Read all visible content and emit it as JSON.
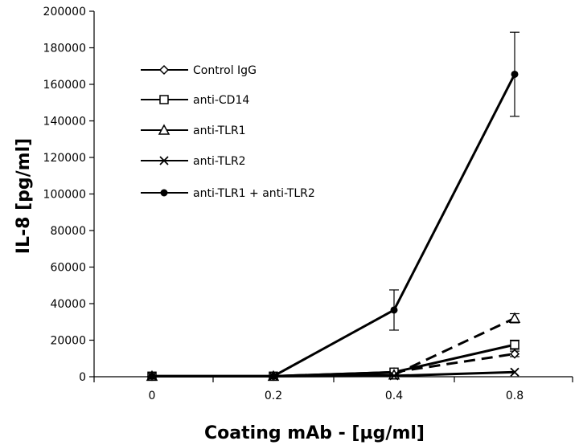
{
  "chart_data": {
    "type": "line",
    "title": "",
    "xlabel": "Coating mAb - [µg/ml]",
    "ylabel": "IL-8 [pg/ml]",
    "categories": [
      "0",
      "0.2",
      "0.4",
      "0.8"
    ],
    "ylim": [
      0,
      200000
    ],
    "yticks": [
      0,
      20000,
      40000,
      60000,
      80000,
      100000,
      120000,
      140000,
      160000,
      180000,
      200000
    ],
    "grid": false,
    "legend_position": "top-left",
    "series": [
      {
        "name": "Control IgG",
        "marker": "diamond",
        "dash": "dashed",
        "values": [
          300,
          300,
          2500,
          12500
        ],
        "errors": [
          0,
          0,
          0,
          1500
        ]
      },
      {
        "name": "anti-CD14",
        "marker": "square",
        "dash": "solid",
        "values": [
          300,
          300,
          2500,
          17500
        ],
        "errors": [
          0,
          0,
          0,
          2500
        ]
      },
      {
        "name": "anti-TLR1",
        "marker": "triangle",
        "dash": "dashed",
        "values": [
          300,
          300,
          1000,
          32000
        ],
        "errors": [
          0,
          0,
          0,
          2500
        ]
      },
      {
        "name": "anti-TLR2",
        "marker": "x",
        "dash": "solid",
        "values": [
          300,
          300,
          500,
          2500
        ],
        "errors": [
          0,
          0,
          0,
          0
        ]
      },
      {
        "name": "anti-TLR1 + anti-TLR2",
        "marker": "circle",
        "dash": "solid",
        "values": [
          300,
          300,
          36500,
          165500
        ],
        "errors": [
          0,
          0,
          11000,
          23000
        ]
      }
    ]
  }
}
